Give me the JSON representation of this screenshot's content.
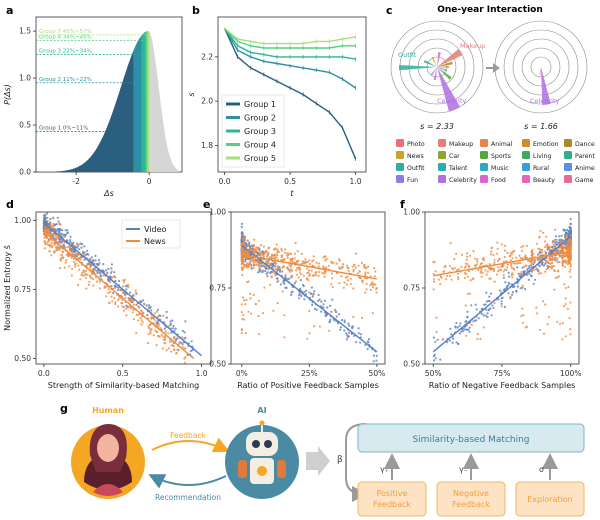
{
  "colors": {
    "g1": "#2a5f80",
    "g2": "#2d8fa5",
    "g3": "#2fb593",
    "g4": "#57cf86",
    "g5": "#a6e07a",
    "gray": "#d6d6d6",
    "video": "#5a7fc0",
    "news": "#f08b3e",
    "box_fill": "#d6eaf0",
    "box_stroke": "#7fb3c3",
    "box_text": "#3c7f98",
    "orange_fill": "#fde3c3",
    "orange_stroke": "#f3b46a",
    "orange_text": "#f0a040",
    "human": "#f5a623",
    "ai": "#4a8aa3"
  },
  "panels": {
    "a": "a",
    "b": "b",
    "c": "c",
    "d": "d",
    "e": "e",
    "f": "f",
    "g": "g"
  },
  "chart_data": [
    {
      "id": "a",
      "type": "area",
      "xlabel": "Δs",
      "ylabel": "P(Δs)",
      "xlim": [
        -3.1,
        0.9
      ],
      "ylim": [
        0,
        1.65
      ],
      "xticks": [
        {
          "v": -2,
          "label": "-2"
        },
        {
          "v": 0,
          "label": "0"
        }
      ],
      "yticks": [
        {
          "v": 0.0,
          "label": "0.0"
        },
        {
          "v": 0.5,
          "label": "0.5"
        },
        {
          "v": 1.0,
          "label": "1.0"
        },
        {
          "v": 1.5,
          "label": "1.5"
        }
      ],
      "groups": [
        {
          "name": "Group 1",
          "range": "0%~11%",
          "y": 0.43,
          "xmax": -0.42
        },
        {
          "name": "Group 2",
          "range": "11%~22%",
          "y": 0.95,
          "xmax": -0.2
        },
        {
          "name": "Group 3",
          "range": "22%~34%",
          "y": 1.25,
          "xmax": -0.1
        },
        {
          "name": "Group 4",
          "range": "34%~45%",
          "y": 1.4,
          "xmax": -0.05
        },
        {
          "name": "Group 5",
          "range": "45%~57%",
          "y": 1.46,
          "xmax": 0.0
        }
      ]
    },
    {
      "id": "b",
      "type": "line",
      "xlabel": "t",
      "ylabel": "s",
      "xlim": [
        -0.05,
        1.08
      ],
      "ylim": [
        1.68,
        2.38
      ],
      "xticks": [
        {
          "v": 0.0,
          "label": "0.0"
        },
        {
          "v": 0.5,
          "label": "0.5"
        },
        {
          "v": 1.0,
          "label": "1.0"
        }
      ],
      "yticks": [
        {
          "v": 1.8,
          "label": "1.8"
        },
        {
          "v": 2.0,
          "label": "2.0"
        },
        {
          "v": 2.2,
          "label": "2.2"
        }
      ],
      "x": [
        0,
        0.1,
        0.2,
        0.3,
        0.4,
        0.5,
        0.6,
        0.7,
        0.8,
        0.9,
        1.0
      ],
      "legend": "bottom-left",
      "series": [
        {
          "name": "Group 1",
          "values": [
            2.33,
            2.2,
            2.15,
            2.12,
            2.09,
            2.06,
            2.03,
            1.99,
            1.95,
            1.88,
            1.74
          ]
        },
        {
          "name": "Group 2",
          "values": [
            2.33,
            2.23,
            2.2,
            2.18,
            2.17,
            2.16,
            2.15,
            2.14,
            2.13,
            2.1,
            2.06
          ]
        },
        {
          "name": "Group 3",
          "values": [
            2.33,
            2.25,
            2.22,
            2.21,
            2.2,
            2.2,
            2.2,
            2.2,
            2.2,
            2.2,
            2.19
          ]
        },
        {
          "name": "Group 4",
          "values": [
            2.33,
            2.27,
            2.25,
            2.24,
            2.24,
            2.24,
            2.24,
            2.24,
            2.24,
            2.25,
            2.25
          ]
        },
        {
          "name": "Group 5",
          "values": [
            2.33,
            2.28,
            2.27,
            2.26,
            2.26,
            2.26,
            2.26,
            2.27,
            2.27,
            2.28,
            2.29
          ]
        }
      ]
    },
    {
      "id": "c",
      "type": "pie",
      "title": "One-year Interaction",
      "charts": [
        {
          "caption": "s = 2.33",
          "labels": [
            "Outfit",
            "Makeup",
            "Celebrity"
          ]
        },
        {
          "caption": "s = 1.66",
          "labels": [
            "Celebrity"
          ]
        }
      ],
      "legend": [
        {
          "name": "Photo",
          "color": "#e8707e"
        },
        {
          "name": "Makeup",
          "color": "#e47e78"
        },
        {
          "name": "Animal",
          "color": "#e9834a"
        },
        {
          "name": "Emotion",
          "color": "#d08d2e"
        },
        {
          "name": "Dance",
          "color": "#a88a2a"
        },
        {
          "name": "News",
          "color": "#c7a42c"
        },
        {
          "name": "Car",
          "color": "#8fa52b"
        },
        {
          "name": "Sports",
          "color": "#55a83a"
        },
        {
          "name": "Living",
          "color": "#3aac62"
        },
        {
          "name": "Parent",
          "color": "#33ad88"
        },
        {
          "name": "Outfit",
          "color": "#2fae9e"
        },
        {
          "name": "Talent",
          "color": "#2eabb2"
        },
        {
          "name": "Music",
          "color": "#2fa6c6"
        },
        {
          "name": "Rural",
          "color": "#3b9fd9"
        },
        {
          "name": "Anime",
          "color": "#5d8fe4"
        },
        {
          "name": "Fun",
          "color": "#8f7ae6"
        },
        {
          "name": "Celebrity",
          "color": "#b070e0"
        },
        {
          "name": "Food",
          "color": "#d766d3"
        },
        {
          "name": "Beauty",
          "color": "#e466b5"
        },
        {
          "name": "Game",
          "color": "#ea6a98"
        }
      ]
    },
    {
      "id": "d",
      "type": "scatter",
      "xlabel": "Strength of Similarity-based Matching",
      "ylabel": "Normalized Entropy s̄",
      "xlim": [
        -0.05,
        1.06
      ],
      "ylim": [
        0.48,
        1.03
      ],
      "xticks": [
        {
          "v": 0.0,
          "label": "0.0"
        },
        {
          "v": 0.5,
          "label": "0.5"
        },
        {
          "v": 1.0,
          "label": "1.0"
        }
      ],
      "yticks": [
        {
          "v": 0.5,
          "label": "0.50"
        },
        {
          "v": 0.75,
          "label": "0.75"
        },
        {
          "v": 1.0,
          "label": "1.00"
        }
      ],
      "legend": "top-right",
      "series": [
        {
          "name": "Video",
          "fit": [
            [
              0.0,
              0.99
            ],
            [
              1.0,
              0.51
            ]
          ]
        },
        {
          "name": "News",
          "fit": [
            [
              0.0,
              0.96
            ],
            [
              0.95,
              0.5
            ]
          ]
        }
      ]
    },
    {
      "id": "e",
      "type": "scatter",
      "xlabel": "Ratio of Positive Feedback Samples",
      "xlim": [
        -0.04,
        0.53
      ],
      "ylim": [
        0.5,
        1.0
      ],
      "xticks": [
        {
          "v": 0.0,
          "label": "0%"
        },
        {
          "v": 0.25,
          "label": "25%"
        },
        {
          "v": 0.5,
          "label": "50%"
        }
      ],
      "yticks": [
        {
          "v": 0.5,
          "label": "0.50"
        },
        {
          "v": 0.75,
          "label": "0.75"
        },
        {
          "v": 1.0,
          "label": "1.00"
        }
      ],
      "series": [
        {
          "name": "Video",
          "fit": [
            [
              0.0,
              0.89
            ],
            [
              0.5,
              0.54
            ]
          ]
        },
        {
          "name": "News",
          "fit": [
            [
              0.0,
              0.86
            ],
            [
              0.5,
              0.78
            ]
          ]
        }
      ]
    },
    {
      "id": "f",
      "type": "scatter",
      "xlabel": "Ratio of Negative Feedback Samples",
      "xlim": [
        0.47,
        1.03
      ],
      "ylim": [
        0.5,
        1.0
      ],
      "xticks": [
        {
          "v": 0.5,
          "label": "50%"
        },
        {
          "v": 0.75,
          "label": "75%"
        },
        {
          "v": 1.0,
          "label": "100%"
        }
      ],
      "yticks": [
        {
          "v": 0.5,
          "label": "0.50"
        },
        {
          "v": 0.75,
          "label": "0.75"
        },
        {
          "v": 1.0,
          "label": "1.00"
        }
      ],
      "series": [
        {
          "name": "Video",
          "fit": [
            [
              0.5,
              0.54
            ],
            [
              1.0,
              0.92
            ]
          ]
        },
        {
          "name": "News",
          "fit": [
            [
              0.5,
              0.79
            ],
            [
              1.0,
              0.87
            ]
          ]
        }
      ]
    }
  ],
  "diagram": {
    "human": "Human",
    "ai": "AI",
    "feedback": "Feedback",
    "recommendation": "Recommendation",
    "beta": "β",
    "matching": "Similarity-based Matching",
    "gamma_pos": "γ₊",
    "gamma_neg": "γ₋",
    "sigma": "σ",
    "positive": [
      "Positive",
      "Feedback"
    ],
    "negative": [
      "Negative",
      "Feedback"
    ],
    "exploration": "Exploration"
  }
}
